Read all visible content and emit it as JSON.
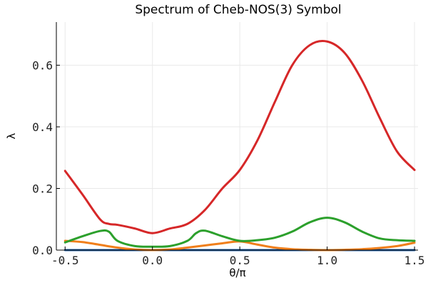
{
  "chart_data": {
    "type": "line",
    "title": "Spectrum of Cheb-NOS(3) Symbol",
    "xlabel": "θ/π",
    "ylabel": "λ",
    "xlim": [
      -0.55,
      1.52
    ],
    "ylim": [
      0,
      0.74
    ],
    "x_ticks": [
      -0.5,
      0.0,
      0.5,
      1.0,
      1.5
    ],
    "x_tick_labels": [
      "-0.5",
      "0.0",
      "0.5",
      "1.0",
      "1.5"
    ],
    "y_ticks": [
      0.0,
      0.2,
      0.4,
      0.6
    ],
    "y_tick_labels": [
      "0.0",
      "0.2",
      "0.4",
      "0.6"
    ],
    "grid": true,
    "legend": "none",
    "series": [
      {
        "color": "#1f5fa8",
        "x": [
          -0.5,
          0.0,
          0.5,
          1.0,
          1.5
        ],
        "y": [
          0.0,
          0.0,
          0.0,
          0.0,
          0.0
        ]
      },
      {
        "color": "#f07f1b",
        "x": [
          -0.5,
          -0.4,
          -0.3,
          -0.2,
          -0.1,
          0.0,
          0.1,
          0.2,
          0.3,
          0.4,
          0.5,
          0.6,
          0.7,
          0.8,
          0.9,
          1.0,
          1.1,
          1.2,
          1.3,
          1.4,
          1.5
        ],
        "y": [
          0.03,
          0.026,
          0.017,
          0.008,
          0.002,
          0.0,
          0.002,
          0.008,
          0.015,
          0.022,
          0.028,
          0.018,
          0.008,
          0.003,
          0.001,
          0.0,
          0.001,
          0.003,
          0.007,
          0.013,
          0.024
        ]
      },
      {
        "color": "#2ca02c",
        "x": [
          -0.5,
          -0.4,
          -0.3,
          -0.25,
          -0.2,
          -0.1,
          0.0,
          0.1,
          0.2,
          0.25,
          0.3,
          0.4,
          0.5,
          0.6,
          0.7,
          0.8,
          0.9,
          1.0,
          1.1,
          1.2,
          1.3,
          1.4,
          1.5
        ],
        "y": [
          0.025,
          0.045,
          0.062,
          0.06,
          0.03,
          0.013,
          0.011,
          0.013,
          0.03,
          0.055,
          0.063,
          0.045,
          0.03,
          0.032,
          0.04,
          0.06,
          0.09,
          0.105,
          0.09,
          0.06,
          0.038,
          0.032,
          0.03
        ]
      },
      {
        "color": "#d62728",
        "x": [
          -0.5,
          -0.4,
          -0.3,
          -0.25,
          -0.2,
          -0.1,
          0.0,
          0.1,
          0.2,
          0.3,
          0.4,
          0.5,
          0.6,
          0.7,
          0.8,
          0.9,
          1.0,
          1.1,
          1.2,
          1.3,
          1.4,
          1.5
        ],
        "y": [
          0.257,
          0.18,
          0.1,
          0.085,
          0.082,
          0.07,
          0.055,
          0.07,
          0.085,
          0.13,
          0.2,
          0.26,
          0.355,
          0.48,
          0.6,
          0.665,
          0.677,
          0.64,
          0.55,
          0.43,
          0.32,
          0.26
        ]
      }
    ]
  }
}
